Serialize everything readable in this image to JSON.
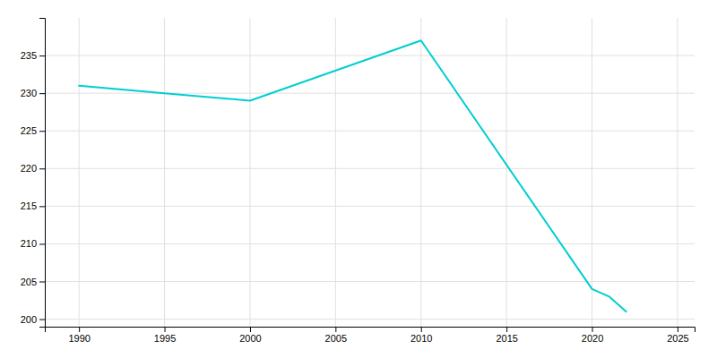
{
  "chart_data": {
    "type": "line",
    "x": [
      1990,
      1995,
      2000,
      2010,
      2020,
      2021,
      2022
    ],
    "values": [
      231,
      230,
      229,
      237,
      204,
      203,
      201
    ],
    "color": "#00CED1",
    "xlim": [
      1988,
      2026
    ],
    "ylim": [
      199,
      240
    ],
    "xticks": [
      1990,
      1995,
      2000,
      2005,
      2010,
      2015,
      2020,
      2025
    ],
    "yticks": [
      200,
      205,
      210,
      215,
      220,
      225,
      230,
      235
    ],
    "grid": true
  }
}
